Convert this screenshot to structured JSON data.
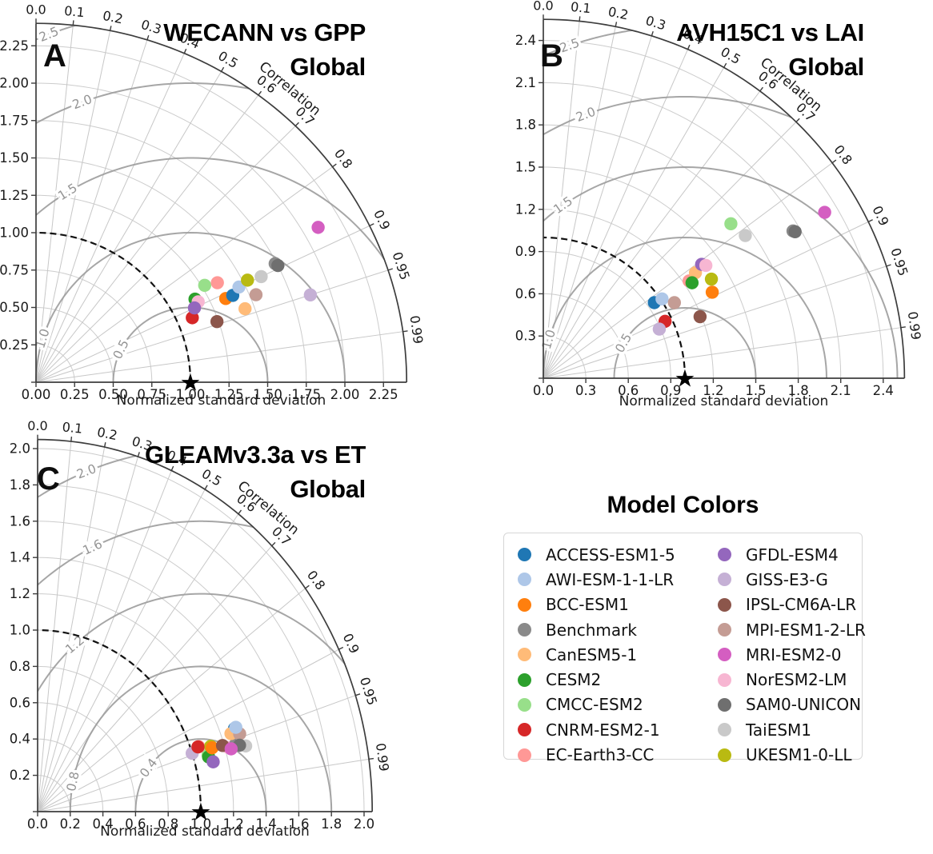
{
  "legend": {
    "title": "Model Colors",
    "models": [
      {
        "name": "ACCESS-ESM1-5",
        "color": "#1f77b4"
      },
      {
        "name": "AWI-ESM-1-1-LR",
        "color": "#aec7e8"
      },
      {
        "name": "BCC-ESM1",
        "color": "#ff7f0e"
      },
      {
        "name": "Benchmark",
        "color": "#8a8a8a"
      },
      {
        "name": "CanESM5-1",
        "color": "#ffbb78"
      },
      {
        "name": "CESM2",
        "color": "#2ca02c"
      },
      {
        "name": "CMCC-ESM2",
        "color": "#98df8a"
      },
      {
        "name": "CNRM-ESM2-1",
        "color": "#d62728"
      },
      {
        "name": "EC-Earth3-CC",
        "color": "#ff9896"
      },
      {
        "name": "GFDL-ESM4",
        "color": "#9467bd"
      },
      {
        "name": "GISS-E3-G",
        "color": "#c5b0d5"
      },
      {
        "name": "IPSL-CM6A-LR",
        "color": "#8c564b"
      },
      {
        "name": "MPI-ESM1-2-LR",
        "color": "#c49c94"
      },
      {
        "name": "MRI-ESM2-0",
        "color": "#d45ec1"
      },
      {
        "name": "NorESM2-LM",
        "color": "#f7b6d2"
      },
      {
        "name": "SAM0-UNICON",
        "color": "#6f6f6f"
      },
      {
        "name": "TaiESM1",
        "color": "#c9c9c9"
      },
      {
        "name": "UKESM1-0-LL",
        "color": "#b9ba12"
      }
    ]
  },
  "chart_data": [
    {
      "type": "taylor",
      "panel_label": "A",
      "title": "WECANN vs GPP",
      "subtitle": "Global",
      "xlabel": "Normalized standard deviation",
      "correlation_axis_label": "Correlation",
      "reference_std": 1.0,
      "axis_max": 2.4,
      "std_ticks": [
        "0.00",
        "0.25",
        "0.50",
        "0.75",
        "1.00",
        "1.25",
        "1.50",
        "1.75",
        "2.00",
        "2.25"
      ],
      "corr_ticks": [
        "0.0",
        "0.1",
        "0.2",
        "0.3",
        "0.4",
        "0.5",
        "0.6",
        "0.7",
        "0.8",
        "0.9",
        "0.95",
        "0.99"
      ],
      "rmse_contours": [
        "0.5",
        "1.0",
        "1.5",
        "2.0",
        "2.5"
      ],
      "points": [
        {
          "model": "Benchmark",
          "std": 1.74,
          "corr": 0.89
        },
        {
          "model": "CESM2",
          "std": 1.17,
          "corr": 0.88
        },
        {
          "model": "NorESM2-LM",
          "std": 1.18,
          "corr": 0.89
        },
        {
          "model": "CNRM-ESM2-1",
          "std": 1.1,
          "corr": 0.92
        },
        {
          "model": "GFDL-ESM4",
          "std": 1.14,
          "corr": 0.9
        },
        {
          "model": "BCC-ESM1",
          "std": 1.35,
          "corr": 0.91
        },
        {
          "model": "ACCESS-ESM1-5",
          "std": 1.4,
          "corr": 0.91
        },
        {
          "model": "AWI-ESM-1-1-LR",
          "std": 1.46,
          "corr": 0.9
        },
        {
          "model": "CanESM5-1",
          "std": 1.44,
          "corr": 0.94
        },
        {
          "model": "CMCC-ESM2",
          "std": 1.27,
          "corr": 0.86
        },
        {
          "model": "EC-Earth3-CC",
          "std": 1.35,
          "corr": 0.87
        },
        {
          "model": "GISS-E3-G",
          "std": 1.87,
          "corr": 0.95
        },
        {
          "model": "IPSL-CM6A-LR",
          "std": 1.24,
          "corr": 0.945
        },
        {
          "model": "MPI-ESM1-2-LR",
          "std": 1.54,
          "corr": 0.925
        },
        {
          "model": "MRI-ESM2-0",
          "std": 2.1,
          "corr": 0.87
        },
        {
          "model": "SAM0-UNICON",
          "std": 1.75,
          "corr": 0.895
        },
        {
          "model": "TaiESM1",
          "std": 1.62,
          "corr": 0.9
        },
        {
          "model": "UKESM1-0-LL",
          "std": 1.53,
          "corr": 0.895
        }
      ]
    },
    {
      "type": "taylor",
      "panel_label": "B",
      "title": "AVH15C1 vs LAI",
      "subtitle": "Global",
      "xlabel": "Normalized standard deviation",
      "correlation_axis_label": "Correlation",
      "reference_std": 1.0,
      "axis_max": 2.55,
      "std_ticks": [
        "0.0",
        "0.3",
        "0.6",
        "0.9",
        "1.2",
        "1.5",
        "1.8",
        "2.1",
        "2.4"
      ],
      "corr_ticks": [
        "0.0",
        "0.1",
        "0.2",
        "0.3",
        "0.4",
        "0.5",
        "0.6",
        "0.7",
        "0.8",
        "0.9",
        "0.95",
        "0.99"
      ],
      "rmse_contours": [
        "0.5",
        "1.0",
        "1.5",
        "2.0",
        "2.5"
      ],
      "points": [
        {
          "model": "EC-Earth3-CC",
          "std": 1.24,
          "corr": 0.83
        },
        {
          "model": "Benchmark",
          "std": 2.05,
          "corr": 0.86
        },
        {
          "model": "CanESM5-1",
          "std": 1.31,
          "corr": 0.82
        },
        {
          "model": "GFDL-ESM4",
          "std": 1.38,
          "corr": 0.81
        },
        {
          "model": "NorESM2-LM",
          "std": 1.4,
          "corr": 0.82
        },
        {
          "model": "CESM2",
          "std": 1.25,
          "corr": 0.84
        },
        {
          "model": "ACCESS-ESM1-5",
          "std": 0.95,
          "corr": 0.825
        },
        {
          "model": "AWI-ESM-1-1-LR",
          "std": 1.01,
          "corr": 0.83
        },
        {
          "model": "BCC-ESM1",
          "std": 1.34,
          "corr": 0.89
        },
        {
          "model": "CMCC-ESM2",
          "std": 1.72,
          "corr": 0.77
        },
        {
          "model": "CNRM-ESM2-1",
          "std": 0.95,
          "corr": 0.905
        },
        {
          "model": "GISS-E3-G",
          "std": 0.89,
          "corr": 0.92
        },
        {
          "model": "IPSL-CM6A-LR",
          "std": 1.19,
          "corr": 0.93
        },
        {
          "model": "MPI-ESM1-2-LR",
          "std": 1.07,
          "corr": 0.865
        },
        {
          "model": "MRI-ESM2-0",
          "std": 2.31,
          "corr": 0.86
        },
        {
          "model": "SAM0-UNICON",
          "std": 2.06,
          "corr": 0.863
        },
        {
          "model": "TaiESM1",
          "std": 1.75,
          "corr": 0.815
        },
        {
          "model": "UKESM1-0-LL",
          "std": 1.38,
          "corr": 0.86
        }
      ]
    },
    {
      "type": "taylor",
      "panel_label": "C",
      "title": "GLEAMv3.3a vs ET",
      "subtitle": "Global",
      "xlabel": "Normalized standard deviation",
      "correlation_axis_label": "Correlation",
      "reference_std": 1.0,
      "axis_max": 2.05,
      "std_ticks": [
        "0.0",
        "0.2",
        "0.4",
        "0.6",
        "0.8",
        "1.0",
        "1.2",
        "1.4",
        "1.6",
        "1.8",
        "2.0"
      ],
      "corr_ticks": [
        "0.0",
        "0.1",
        "0.2",
        "0.3",
        "0.4",
        "0.5",
        "0.6",
        "0.7",
        "0.8",
        "0.9",
        "0.95",
        "0.99"
      ],
      "rmse_contours": [
        "0.4",
        "0.8",
        "1.2",
        "1.6",
        "2.0"
      ],
      "points": [
        {
          "model": "ACCESS-ESM1-5",
          "std": 1.29,
          "corr": 0.935
        },
        {
          "model": "CMCC-ESM2",
          "std": 1.09,
          "corr": 0.958
        },
        {
          "model": "EC-Earth3-CC",
          "std": 1.05,
          "corr": 0.94
        },
        {
          "model": "NorESM2-LM",
          "std": 1.22,
          "corr": 0.957
        },
        {
          "model": "UKESM1-0-LL",
          "std": 1.12,
          "corr": 0.947
        },
        {
          "model": "Benchmark",
          "std": 1.27,
          "corr": 0.956
        },
        {
          "model": "GISS-E3-G",
          "std": 1.0,
          "corr": 0.947
        },
        {
          "model": "CNRM-ESM2-1",
          "std": 1.045,
          "corr": 0.94
        },
        {
          "model": "CESM2",
          "std": 1.09,
          "corr": 0.961
        },
        {
          "model": "GFDL-ESM4",
          "std": 1.11,
          "corr": 0.969
        },
        {
          "model": "CanESM5-1",
          "std": 1.26,
          "corr": 0.94
        },
        {
          "model": "MPI-ESM1-2-LR",
          "std": 1.31,
          "corr": 0.945
        },
        {
          "model": "AWI-ESM-1-1-LR",
          "std": 1.3,
          "corr": 0.934
        },
        {
          "model": "TaiESM1",
          "std": 1.325,
          "corr": 0.962
        },
        {
          "model": "SAM0-UNICON",
          "std": 1.29,
          "corr": 0.959
        },
        {
          "model": "BCC-ESM1",
          "std": 1.125,
          "corr": 0.95
        },
        {
          "model": "IPSL-CM6A-LR",
          "std": 1.19,
          "corr": 0.952
        },
        {
          "model": "MRI-ESM2-0",
          "std": 1.235,
          "corr": 0.96
        }
      ]
    }
  ]
}
